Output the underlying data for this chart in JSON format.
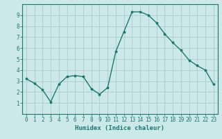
{
  "x": [
    0,
    1,
    2,
    3,
    4,
    5,
    6,
    7,
    8,
    9,
    10,
    11,
    12,
    13,
    14,
    15,
    16,
    17,
    18,
    19,
    20,
    21,
    22,
    23
  ],
  "y": [
    3.2,
    2.8,
    2.2,
    1.1,
    2.7,
    3.4,
    3.5,
    3.4,
    2.3,
    1.8,
    2.4,
    5.7,
    7.5,
    9.3,
    9.3,
    9.0,
    8.3,
    7.3,
    6.5,
    5.8,
    4.9,
    4.4,
    4.0,
    2.7
  ],
  "xlim": [
    -0.5,
    23.5
  ],
  "ylim": [
    0,
    10
  ],
  "yticks": [
    1,
    2,
    3,
    4,
    5,
    6,
    7,
    8,
    9
  ],
  "xticks": [
    0,
    1,
    2,
    3,
    4,
    5,
    6,
    7,
    8,
    9,
    10,
    11,
    12,
    13,
    14,
    15,
    16,
    17,
    18,
    19,
    20,
    21,
    22,
    23
  ],
  "xlabel": "Humidex (Indice chaleur)",
  "line_color": "#1a7a6e",
  "marker": "*",
  "marker_size": 2.5,
  "bg_color": "#cce8e8",
  "grid_color": "#aacccc",
  "axis_color": "#1a7a6e",
  "tick_color": "#1a7a6e",
  "label_color": "#1a7a6e",
  "xlabel_fontsize": 6.5,
  "tick_fontsize": 5.5
}
